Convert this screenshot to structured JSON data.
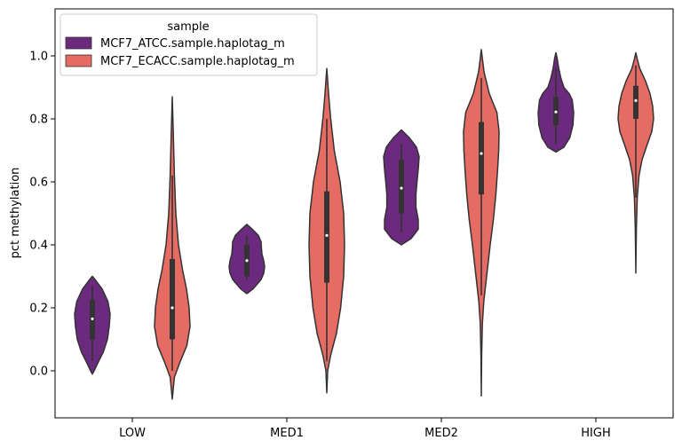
{
  "chart_data": {
    "type": "violin",
    "title": "",
    "xlabel": "",
    "ylabel": "pct methylation",
    "ylim": [
      -0.15,
      1.15
    ],
    "yticks": [
      "0.0",
      "0.2",
      "0.4",
      "0.6",
      "0.8",
      "1.0"
    ],
    "categories": [
      "LOW",
      "MED1",
      "MED2",
      "HIGH"
    ],
    "legend": {
      "title": "sample",
      "placement": "upper-left"
    },
    "series": [
      {
        "name": "MCF7_ATCC.sample.haplotag_m",
        "color": "#6b2a7e",
        "violins": [
          {
            "y": [
              -0.01,
              0.0,
              0.03,
              0.06,
              0.1,
              0.14,
              0.18,
              0.22,
              0.26,
              0.29,
              0.3
            ],
            "w": [
              0.0,
              0.1,
              0.35,
              0.62,
              0.85,
              0.95,
              1.0,
              0.88,
              0.55,
              0.15,
              0.0
            ],
            "q1": 0.1,
            "median": 0.165,
            "q3": 0.225,
            "wlo": 0.03,
            "whi": 0.27
          },
          {
            "y": [
              0.245,
              0.26,
              0.29,
              0.31,
              0.33,
              0.35,
              0.37,
              0.39,
              0.41,
              0.43,
              0.45,
              0.465
            ],
            "w": [
              0.0,
              0.35,
              0.8,
              0.95,
              1.0,
              0.95,
              0.85,
              0.82,
              0.8,
              0.65,
              0.3,
              0.0
            ],
            "q1": 0.3,
            "median": 0.35,
            "q3": 0.4,
            "wlo": 0.29,
            "whi": 0.43
          },
          {
            "y": [
              0.4,
              0.42,
              0.45,
              0.48,
              0.52,
              0.56,
              0.6,
              0.64,
              0.68,
              0.71,
              0.74,
              0.765
            ],
            "w": [
              0.0,
              0.55,
              0.95,
              0.95,
              0.82,
              0.82,
              0.88,
              0.95,
              1.0,
              0.85,
              0.45,
              0.0
            ],
            "q1": 0.5,
            "median": 0.58,
            "q3": 0.67,
            "wlo": 0.44,
            "whi": 0.72
          },
          {
            "y": [
              0.695,
              0.71,
              0.74,
              0.78,
              0.82,
              0.86,
              0.88,
              0.9,
              0.93,
              0.96,
              0.99,
              1.01
            ],
            "w": [
              0.0,
              0.45,
              0.78,
              0.96,
              1.0,
              0.92,
              0.75,
              0.45,
              0.28,
              0.16,
              0.08,
              0.0
            ],
            "q1": 0.78,
            "median": 0.822,
            "q3": 0.87,
            "wlo": 0.72,
            "whi": 0.96
          }
        ]
      },
      {
        "name": "MCF7_ECACC.sample.haplotag_m",
        "color": "#e56b63",
        "violins": [
          {
            "y": [
              -0.09,
              -0.02,
              0.03,
              0.08,
              0.14,
              0.2,
              0.26,
              0.32,
              0.4,
              0.5,
              0.62,
              0.75,
              0.87
            ],
            "w": [
              0.0,
              0.12,
              0.45,
              0.82,
              1.0,
              0.95,
              0.8,
              0.58,
              0.35,
              0.2,
              0.12,
              0.06,
              0.0
            ],
            "q1": 0.1,
            "median": 0.2,
            "q3": 0.355,
            "wlo": 0.0,
            "whi": 0.62
          },
          {
            "y": [
              -0.07,
              0.0,
              0.05,
              0.12,
              0.2,
              0.3,
              0.4,
              0.5,
              0.6,
              0.7,
              0.8,
              0.88,
              0.96
            ],
            "w": [
              0.0,
              0.05,
              0.22,
              0.55,
              0.78,
              0.95,
              1.0,
              0.95,
              0.75,
              0.42,
              0.22,
              0.1,
              0.0
            ],
            "q1": 0.28,
            "median": 0.43,
            "q3": 0.57,
            "wlo": 0.03,
            "whi": 0.8
          },
          {
            "y": [
              -0.08,
              0.05,
              0.15,
              0.22,
              0.3,
              0.4,
              0.48,
              0.56,
              0.64,
              0.7,
              0.76,
              0.82,
              0.88,
              0.95,
              1.02
            ],
            "w": [
              0.0,
              0.02,
              0.06,
              0.14,
              0.3,
              0.5,
              0.68,
              0.82,
              0.92,
              0.98,
              1.0,
              0.88,
              0.45,
              0.15,
              0.0
            ],
            "q1": 0.56,
            "median": 0.69,
            "q3": 0.79,
            "wlo": 0.24,
            "whi": 0.93
          },
          {
            "y": [
              0.31,
              0.45,
              0.55,
              0.62,
              0.67,
              0.72,
              0.76,
              0.8,
              0.84,
              0.88,
              0.92,
              0.96,
              0.99,
              1.01
            ],
            "w": [
              0.0,
              0.03,
              0.08,
              0.18,
              0.35,
              0.65,
              0.9,
              1.0,
              0.95,
              0.8,
              0.55,
              0.22,
              0.08,
              0.0
            ],
            "q1": 0.8,
            "median": 0.858,
            "q3": 0.905,
            "wlo": 0.55,
            "whi": 0.97
          }
        ]
      }
    ]
  }
}
